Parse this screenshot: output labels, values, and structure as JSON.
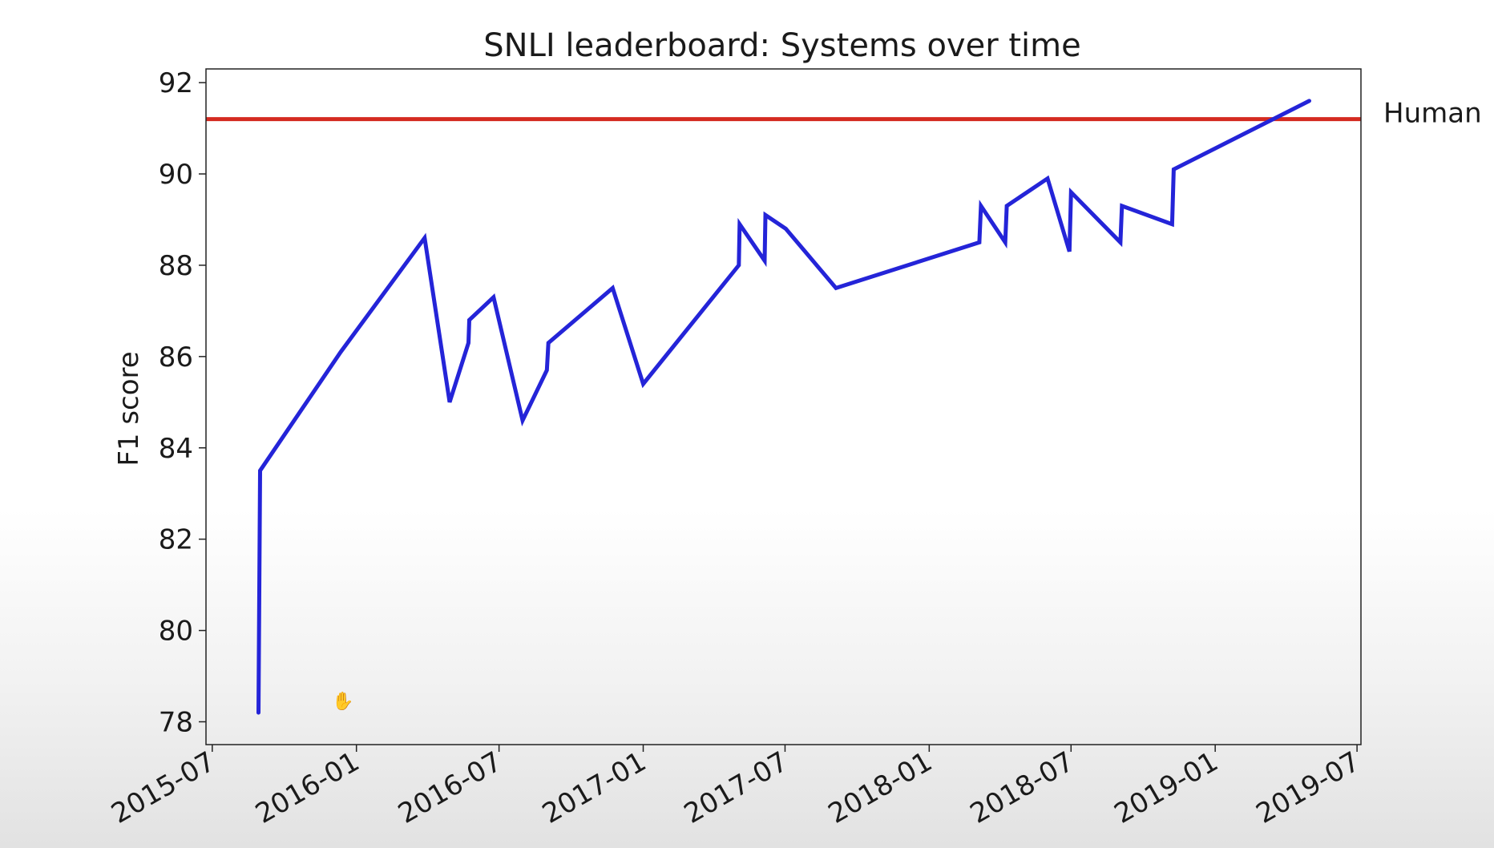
{
  "chart_data": {
    "type": "line",
    "title": "SNLI leaderboard: Systems over time",
    "xlabel": "",
    "ylabel": "F1 score",
    "xlim": [
      "2015-06-23",
      "2019-07-06"
    ],
    "ylim": [
      77.5,
      92.3
    ],
    "x_ticks": [
      "2015-07",
      "2016-01",
      "2016-07",
      "2017-01",
      "2017-07",
      "2018-01",
      "2018-07",
      "2019-01",
      "2019-07"
    ],
    "y_ticks": [
      78,
      80,
      82,
      84,
      86,
      88,
      90,
      92
    ],
    "grid": false,
    "series": [
      {
        "color": "#2424d8",
        "x": [
          "2015-08-29",
          "2015-08-31",
          "2015-12-12",
          "2016-03-28",
          "2016-04-29",
          "2016-05-23",
          "2016-05-24",
          "2016-06-24",
          "2016-07-31",
          "2016-08-31",
          "2016-09-02",
          "2016-11-23",
          "2017-01-01",
          "2017-05-03",
          "2017-05-04",
          "2017-06-05",
          "2017-06-06",
          "2017-07-02",
          "2017-09-04",
          "2018-03-06",
          "2018-03-08",
          "2018-04-08",
          "2018-04-10",
          "2018-06-01",
          "2018-06-29",
          "2018-07-01",
          "2018-09-02",
          "2018-09-04",
          "2018-11-07",
          "2018-11-09",
          "2019-05-01"
        ],
        "y": [
          78.2,
          83.5,
          86.1,
          88.6,
          85.0,
          86.3,
          86.8,
          87.3,
          84.6,
          85.7,
          86.3,
          87.5,
          85.4,
          88.0,
          88.9,
          88.1,
          89.1,
          88.8,
          87.5,
          88.5,
          89.3,
          88.5,
          89.3,
          89.9,
          88.3,
          89.6,
          88.5,
          89.3,
          88.9,
          90.1,
          91.6
        ]
      }
    ],
    "reference_line": {
      "label": "Human",
      "y": 91.2,
      "color": "#d42a20"
    }
  }
}
